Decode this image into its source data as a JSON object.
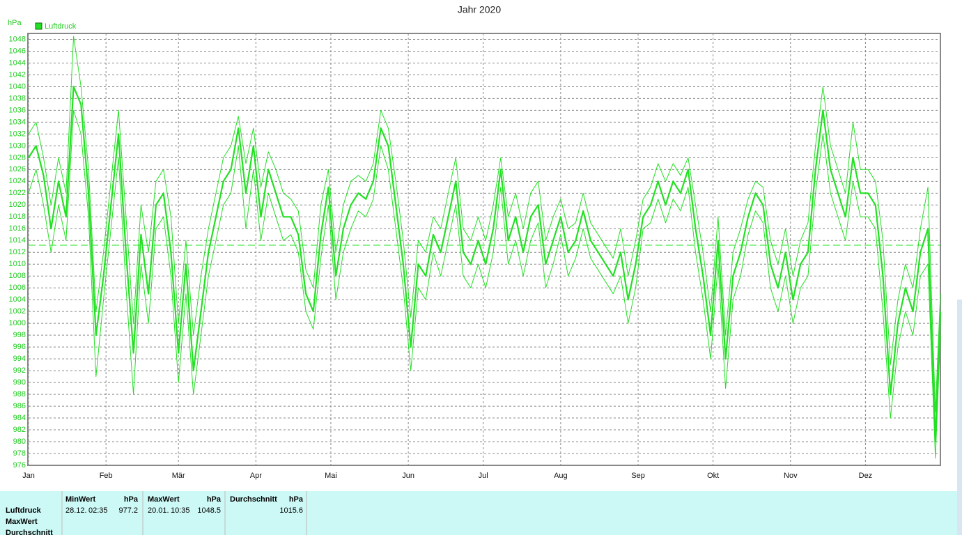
{
  "chart_data": {
    "type": "line",
    "title": "Jahr 2020",
    "y_unit": "hPa",
    "x": [
      0,
      3,
      6,
      9,
      12,
      15,
      18,
      21,
      24,
      27,
      30,
      33,
      36,
      39,
      42,
      45,
      48,
      51,
      54,
      57,
      60,
      63,
      66,
      69,
      72,
      75,
      78,
      81,
      84,
      87,
      90,
      93,
      96,
      99,
      102,
      105,
      108,
      111,
      114,
      117,
      120,
      123,
      126,
      129,
      132,
      135,
      138,
      141,
      144,
      147,
      150,
      153,
      156,
      159,
      162,
      165,
      168,
      171,
      174,
      177,
      180,
      183,
      186,
      189,
      192,
      195,
      198,
      201,
      204,
      207,
      210,
      213,
      216,
      219,
      222,
      225,
      228,
      231,
      234,
      237,
      240,
      243,
      246,
      249,
      252,
      255,
      258,
      261,
      264,
      267,
      270,
      273,
      276,
      279,
      282,
      285,
      288,
      291,
      294,
      297,
      300,
      303,
      306,
      309,
      312,
      315,
      318,
      321,
      324,
      327,
      330,
      333,
      336,
      339,
      342,
      345,
      348,
      351,
      354,
      357,
      360,
      363,
      365
    ],
    "series": [
      {
        "name": "Luftdruck",
        "color": "#22e022",
        "values": [
          1028,
          1030,
          1025,
          1016,
          1024,
          1018,
          1040,
          1037,
          1022,
          998,
          1008,
          1020,
          1032,
          1012,
          995,
          1015,
          1005,
          1020,
          1022,
          1012,
          995,
          1010,
          992,
          1002,
          1012,
          1018,
          1024,
          1026,
          1033,
          1022,
          1030,
          1018,
          1026,
          1022,
          1018,
          1018,
          1015,
          1005,
          1002,
          1015,
          1023,
          1008,
          1016,
          1020,
          1022,
          1021,
          1024,
          1033,
          1030,
          1020,
          1010,
          996,
          1010,
          1008,
          1015,
          1012,
          1018,
          1024,
          1012,
          1010,
          1014,
          1010,
          1016,
          1026,
          1014,
          1018,
          1012,
          1018,
          1020,
          1010,
          1014,
          1018,
          1012,
          1014,
          1019,
          1014,
          1012,
          1010,
          1008,
          1012,
          1004,
          1010,
          1018,
          1020,
          1024,
          1020,
          1024,
          1022,
          1026,
          1016,
          1008,
          998,
          1014,
          994,
          1008,
          1012,
          1018,
          1022,
          1020,
          1010,
          1006,
          1012,
          1004,
          1010,
          1012,
          1026,
          1036,
          1026,
          1022,
          1018,
          1028,
          1022,
          1022,
          1020,
          1008,
          988,
          1000,
          1006,
          1002,
          1012,
          1016,
          980,
          1002
        ]
      },
      {
        "color": "#22e022",
        "values": [
          1032,
          1034,
          1028,
          1020,
          1028,
          1022,
          1048.5,
          1040,
          1026,
          1002,
          1012,
          1024,
          1036,
          1018,
          1000,
          1020,
          1012,
          1024,
          1026,
          1018,
          1000,
          1014,
          998,
          1008,
          1016,
          1022,
          1028,
          1030,
          1035,
          1027,
          1033,
          1023,
          1029,
          1026,
          1022,
          1021,
          1019,
          1009,
          1006,
          1020,
          1026,
          1012,
          1020,
          1024,
          1025,
          1024,
          1027,
          1036,
          1033,
          1024,
          1014,
          1001,
          1014,
          1012,
          1018,
          1016,
          1022,
          1028,
          1016,
          1014,
          1018,
          1014,
          1020,
          1028,
          1018,
          1022,
          1016,
          1022,
          1024,
          1014,
          1018,
          1021,
          1016,
          1017,
          1022,
          1017,
          1015,
          1013,
          1011,
          1016,
          1008,
          1014,
          1021,
          1023,
          1027,
          1024,
          1027,
          1025,
          1028,
          1020,
          1012,
          1002,
          1018,
          998,
          1012,
          1016,
          1021,
          1024,
          1023,
          1014,
          1010,
          1016,
          1008,
          1014,
          1017,
          1030,
          1040,
          1030,
          1026,
          1022,
          1034,
          1026,
          1026,
          1024,
          1014,
          993,
          1004,
          1010,
          1006,
          1016,
          1023,
          985,
          1005
        ]
      },
      {
        "color": "#22e022",
        "values": [
          1022,
          1026,
          1020,
          1012,
          1020,
          1014,
          1036,
          1032,
          1018,
          991,
          1004,
          1016,
          1028,
          1006,
          988,
          1010,
          1000,
          1016,
          1018,
          1008,
          990,
          1005,
          988,
          998,
          1008,
          1014,
          1020,
          1022,
          1030,
          1016,
          1026,
          1014,
          1022,
          1018,
          1014,
          1015,
          1012,
          1002,
          999,
          1011,
          1020,
          1004,
          1012,
          1016,
          1019,
          1018,
          1021,
          1030,
          1026,
          1016,
          1006,
          992,
          1006,
          1004,
          1012,
          1008,
          1014,
          1020,
          1008,
          1006,
          1010,
          1006,
          1012,
          1023,
          1010,
          1014,
          1008,
          1014,
          1017,
          1006,
          1010,
          1015,
          1008,
          1011,
          1016,
          1011,
          1009,
          1007,
          1005,
          1008,
          1000,
          1006,
          1016,
          1017,
          1021,
          1017,
          1021,
          1019,
          1023,
          1012,
          1004,
          994,
          1010,
          989,
          1004,
          1008,
          1015,
          1019,
          1017,
          1006,
          1002,
          1008,
          1000,
          1006,
          1008,
          1022,
          1032,
          1022,
          1018,
          1014,
          1024,
          1018,
          1018,
          1016,
          1002,
          984,
          996,
          1002,
          998,
          1008,
          1010,
          977.2,
          998
        ]
      }
    ],
    "mean_line": 1013.2,
    "xlim": [
      0,
      365
    ],
    "xticks": [
      {
        "value": 0,
        "label": "Jan"
      },
      {
        "value": 31,
        "label": "Feb"
      },
      {
        "value": 60,
        "label": "Mär"
      },
      {
        "value": 91,
        "label": "Apr"
      },
      {
        "value": 121,
        "label": "Mai"
      },
      {
        "value": 152,
        "label": "Jun"
      },
      {
        "value": 182,
        "label": "Jul"
      },
      {
        "value": 213,
        "label": "Aug"
      },
      {
        "value": 244,
        "label": "Sep"
      },
      {
        "value": 274,
        "label": "Okt"
      },
      {
        "value": 305,
        "label": "Nov"
      },
      {
        "value": 335,
        "label": "Dez"
      }
    ],
    "ylim": [
      976,
      1049
    ],
    "yticks": [
      976,
      978,
      980,
      982,
      984,
      986,
      988,
      990,
      992,
      994,
      996,
      998,
      1000,
      1002,
      1004,
      1006,
      1008,
      1010,
      1012,
      1014,
      1016,
      1018,
      1020,
      1022,
      1024,
      1026,
      1028,
      1030,
      1032,
      1034,
      1036,
      1038,
      1040,
      1042,
      1044,
      1046,
      1048
    ],
    "grid": true,
    "legend": "top-left"
  },
  "stats_table": {
    "columns": [
      {
        "label": "MinWert",
        "unit": "hPa"
      },
      {
        "label": "MaxWert",
        "unit": "hPa"
      },
      {
        "label": "Durchschnitt",
        "unit": "hPa"
      }
    ],
    "row_labels": [
      "Luftdruck",
      "MaxWert",
      "Durchschnitt"
    ],
    "rows": [
      [
        {
          "date": "28.12.",
          "time": "02:35",
          "value": "977.2"
        },
        {
          "date": "20.01.",
          "time": "10:35",
          "value": "1048.5"
        },
        {
          "value": "1015.6"
        }
      ]
    ]
  }
}
